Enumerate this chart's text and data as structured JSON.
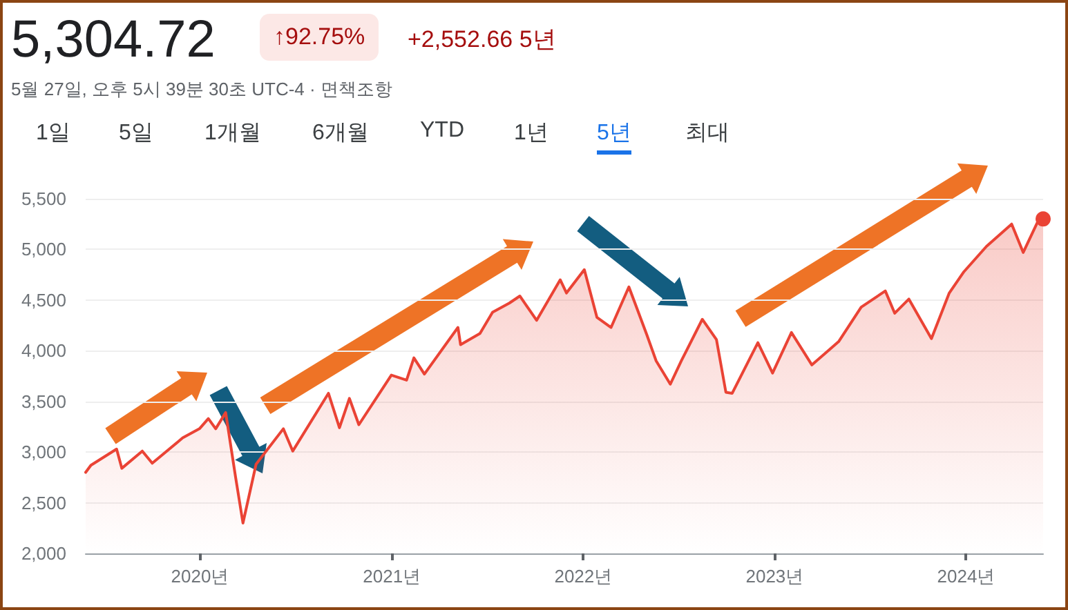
{
  "chart_data": {
    "type": "area",
    "title": "5,304.72",
    "subtitle": "5월 27일, 오후 5시 39분 30초 UTC-4 · 면책조항",
    "annotations": [
      "↑92.75%",
      "+2,552.66 5년",
      "1일",
      "5일",
      "1개월",
      "6개월",
      "YTD",
      "1년",
      "5년",
      "최대"
    ],
    "x": [
      "2019-05-28",
      "2019-06-07",
      "2019-07-26",
      "2019-08-05",
      "2019-09-13",
      "2019-10-02",
      "2019-11-29",
      "2019-12-31",
      "2020-01-17",
      "2020-01-31",
      "2020-02-19",
      "2020-03-09",
      "2020-03-23",
      "2020-04-17",
      "2020-06-08",
      "2020-06-26",
      "2020-09-02",
      "2020-09-23",
      "2020-10-12",
      "2020-10-30",
      "2020-12-31",
      "2021-01-29",
      "2021-02-12",
      "2021-03-04",
      "2021-05-07",
      "2021-05-12",
      "2021-06-18",
      "2021-07-12",
      "2021-08-13",
      "2021-09-02",
      "2021-10-04",
      "2021-11-18",
      "2021-11-30",
      "2022-01-03",
      "2022-01-27",
      "2022-02-23",
      "2022-03-29",
      "2022-05-02",
      "2022-05-20",
      "2022-06-16",
      "2022-07-07",
      "2022-08-16",
      "2022-09-12",
      "2022-09-30",
      "2022-10-12",
      "2022-11-30",
      "2022-12-28",
      "2023-02-02",
      "2023-03-13",
      "2023-05-03",
      "2023-06-15",
      "2023-07-31",
      "2023-08-18",
      "2023-09-14",
      "2023-10-27",
      "2023-11-30",
      "2023-12-28",
      "2024-02-09",
      "2024-03-28",
      "2024-04-19",
      "2024-05-21",
      "2024-05-27"
    ],
    "series": [
      {
        "color": "#ea4335",
        "values": [
          2800,
          2870,
          3030,
          2840,
          3010,
          2890,
          3140,
          3230,
          3330,
          3230,
          3390,
          2750,
          2300,
          2880,
          3230,
          3010,
          3580,
          3240,
          3530,
          3270,
          3760,
          3710,
          3930,
          3770,
          4230,
          4060,
          4170,
          4380,
          4470,
          4540,
          4300,
          4700,
          4570,
          4800,
          4330,
          4230,
          4630,
          4160,
          3900,
          3670,
          3900,
          4310,
          4110,
          3590,
          3580,
          4080,
          3780,
          4180,
          3860,
          4090,
          4430,
          4590,
          4370,
          4510,
          4120,
          4570,
          4780,
          5030,
          5250,
          4970,
          5320,
          5300
        ]
      }
    ],
    "xlim": [
      "2019-05-28",
      "2024-05-27"
    ],
    "xticks": [
      {
        "value": "2020-01-01",
        "label": "2020년"
      },
      {
        "value": "2021-01-01",
        "label": "2021년"
      },
      {
        "value": "2022-01-01",
        "label": "2022년"
      },
      {
        "value": "2023-01-01",
        "label": "2023년"
      },
      {
        "value": "2024-01-01",
        "label": "2024년"
      }
    ],
    "ylim": [
      2000,
      5500
    ],
    "yticks": [
      {
        "value": 2000,
        "label": "2,000"
      },
      {
        "value": 2500,
        "label": "2,500"
      },
      {
        "value": 3000,
        "label": "3,000"
      },
      {
        "value": 3500,
        "label": "3,500"
      },
      {
        "value": 4000,
        "label": "4,000"
      },
      {
        "value": 4500,
        "label": "4,500"
      },
      {
        "value": 5000,
        "label": "5,000"
      },
      {
        "value": 5500,
        "label": "5,500"
      }
    ],
    "grid": "y",
    "marker": "none",
    "line_style": "solid"
  }
}
